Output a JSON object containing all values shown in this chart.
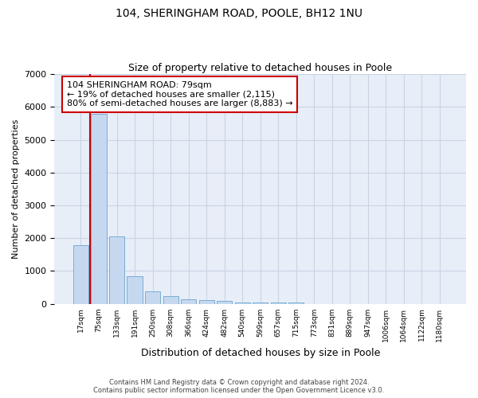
{
  "title1": "104, SHERINGHAM ROAD, POOLE, BH12 1NU",
  "title2": "Size of property relative to detached houses in Poole",
  "xlabel": "Distribution of detached houses by size in Poole",
  "ylabel": "Number of detached properties",
  "bar_color": "#c5d8ef",
  "bar_edge_color": "#7aadd4",
  "grid_color": "#c8d4e4",
  "background_color": "#e8eef8",
  "marker_line_color": "#cc0000",
  "annotation_box_color": "#cc0000",
  "categories": [
    "17sqm",
    "75sqm",
    "133sqm",
    "191sqm",
    "250sqm",
    "308sqm",
    "366sqm",
    "424sqm",
    "482sqm",
    "540sqm",
    "599sqm",
    "657sqm",
    "715sqm",
    "773sqm",
    "831sqm",
    "889sqm",
    "947sqm",
    "1006sqm",
    "1064sqm",
    "1122sqm",
    "1180sqm"
  ],
  "values": [
    1780,
    5780,
    2060,
    830,
    370,
    235,
    130,
    115,
    100,
    50,
    50,
    50,
    50,
    0,
    0,
    0,
    0,
    0,
    0,
    0,
    0
  ],
  "marker_bar_index": 1,
  "annotation_text": "104 SHERINGHAM ROAD: 79sqm\n← 19% of detached houses are smaller (2,115)\n80% of semi-detached houses are larger (8,883) →",
  "footer1": "Contains HM Land Registry data © Crown copyright and database right 2024.",
  "footer2": "Contains public sector information licensed under the Open Government Licence v3.0.",
  "ylim": [
    0,
    7000
  ],
  "yticks": [
    0,
    1000,
    2000,
    3000,
    4000,
    5000,
    6000,
    7000
  ]
}
